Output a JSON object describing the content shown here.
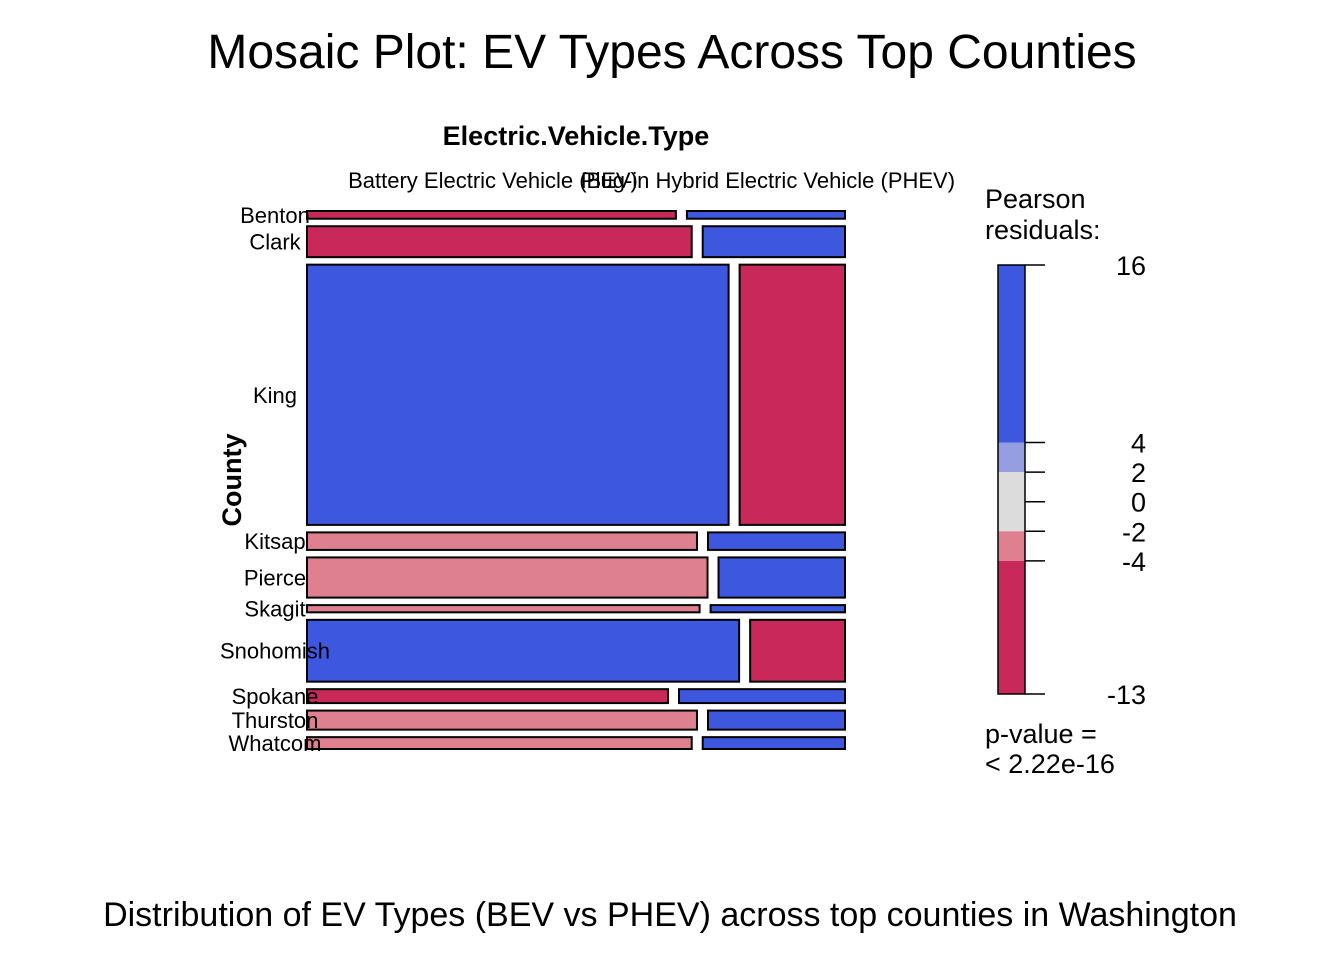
{
  "chart_data": {
    "type": "mosaic",
    "title": "Mosaic Plot: EV Types Across Top Counties",
    "caption": "Distribution of EV Types (BEV vs PHEV) across top counties in Washington",
    "column_variable": "Electric.Vehicle.Type",
    "row_variable": "County",
    "categories": [
      "Battery Electric Vehicle (BEV)",
      "Plug-in Hybrid Electric Vehicle (PHEV)"
    ],
    "rows": [
      {
        "county": "Benton",
        "share": 0.015,
        "bev_fraction": 0.7,
        "residual_class": [
          "neg-strong",
          "pos-strong"
        ]
      },
      {
        "county": "Clark",
        "share": 0.06,
        "bev_fraction": 0.73,
        "residual_class": [
          "neg-strong",
          "pos-strong"
        ]
      },
      {
        "county": "King",
        "share": 0.505,
        "bev_fraction": 0.8,
        "residual_class": [
          "pos-strong",
          "neg-strong"
        ]
      },
      {
        "county": "Kitsap",
        "share": 0.034,
        "bev_fraction": 0.74,
        "residual_class": [
          "neg-mild",
          "pos-strong"
        ]
      },
      {
        "county": "Pierce",
        "share": 0.078,
        "bev_fraction": 0.76,
        "residual_class": [
          "neg-mild",
          "pos-strong"
        ]
      },
      {
        "county": "Skagit",
        "share": 0.014,
        "bev_fraction": 0.745,
        "residual_class": [
          "neg-mild",
          "pos-strong"
        ]
      },
      {
        "county": "Snohomish",
        "share": 0.12,
        "bev_fraction": 0.82,
        "residual_class": [
          "pos-strong",
          "neg-strong"
        ]
      },
      {
        "county": "Spokane",
        "share": 0.027,
        "bev_fraction": 0.685,
        "residual_class": [
          "neg-strong",
          "pos-strong"
        ]
      },
      {
        "county": "Thurston",
        "share": 0.037,
        "bev_fraction": 0.74,
        "residual_class": [
          "neg-mild",
          "pos-strong"
        ]
      },
      {
        "county": "Whatcom",
        "share": 0.023,
        "bev_fraction": 0.73,
        "residual_class": [
          "neg-mild",
          "pos-strong"
        ]
      }
    ],
    "legend": {
      "title_lines": [
        "Pearson",
        "residuals:"
      ],
      "ticks": [
        16,
        4,
        2,
        0,
        -2,
        -4,
        -13
      ],
      "range": [
        -13,
        16
      ],
      "pvalue_lines": [
        "p-value =",
        "< 2.22e-16"
      ],
      "colors": {
        "pos-strong": "#3d58df",
        "pos-mild": "#949ee0",
        "neutral": "#dcdcdc",
        "neg-mild": "#de8090",
        "neg-strong": "#c8285a"
      }
    }
  }
}
